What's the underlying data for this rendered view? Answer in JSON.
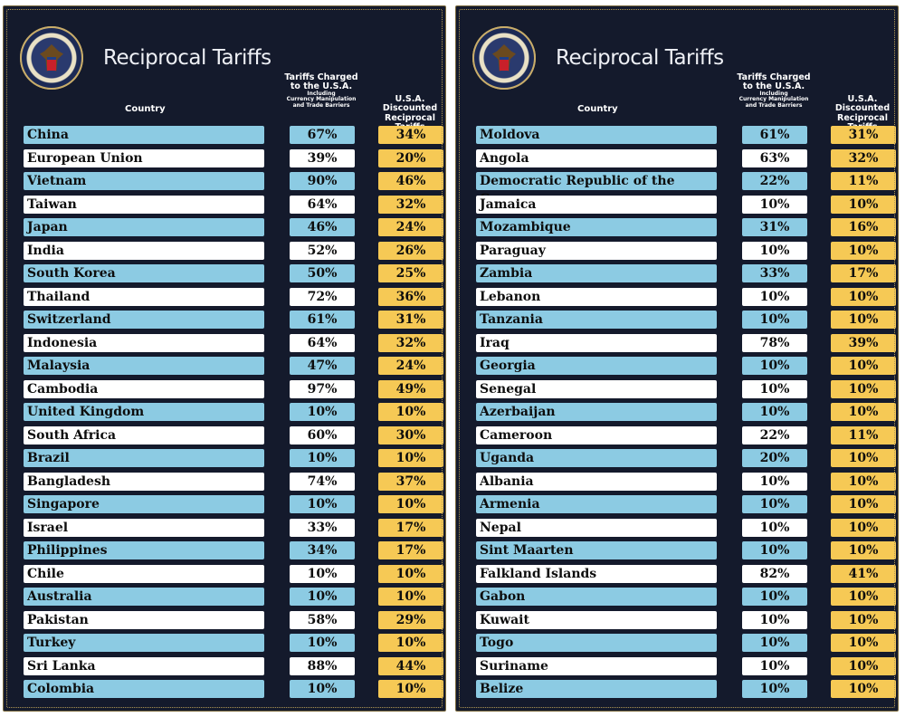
{
  "title": "Reciprocal Tariffs",
  "headers": {
    "country": "Country",
    "charged_line1": "Tariffs Charged",
    "charged_line2": "to the U.S.A.",
    "charged_sub1": "Including",
    "charged_sub2": "Currency Manipulation",
    "charged_sub3": "and Trade Barriers",
    "recip_line1": "U.S.A. Discounted",
    "recip_line2": "Reciprocal Tariffs"
  },
  "seal_text": "SEAL OF THE PRESIDENT OF THE UNITED STATES",
  "panels": [
    {
      "rows": [
        {
          "country": "China",
          "charged": "67%",
          "reciprocal": "34%"
        },
        {
          "country": "European Union",
          "charged": "39%",
          "reciprocal": "20%"
        },
        {
          "country": "Vietnam",
          "charged": "90%",
          "reciprocal": "46%"
        },
        {
          "country": "Taiwan",
          "charged": "64%",
          "reciprocal": "32%"
        },
        {
          "country": "Japan",
          "charged": "46%",
          "reciprocal": "24%"
        },
        {
          "country": "India",
          "charged": "52%",
          "reciprocal": "26%"
        },
        {
          "country": "South Korea",
          "charged": "50%",
          "reciprocal": "25%"
        },
        {
          "country": "Thailand",
          "charged": "72%",
          "reciprocal": "36%"
        },
        {
          "country": "Switzerland",
          "charged": "61%",
          "reciprocal": "31%"
        },
        {
          "country": "Indonesia",
          "charged": "64%",
          "reciprocal": "32%"
        },
        {
          "country": "Malaysia",
          "charged": "47%",
          "reciprocal": "24%"
        },
        {
          "country": "Cambodia",
          "charged": "97%",
          "reciprocal": "49%"
        },
        {
          "country": "United Kingdom",
          "charged": "10%",
          "reciprocal": "10%"
        },
        {
          "country": "South Africa",
          "charged": "60%",
          "reciprocal": "30%"
        },
        {
          "country": "Brazil",
          "charged": "10%",
          "reciprocal": "10%"
        },
        {
          "country": "Bangladesh",
          "charged": "74%",
          "reciprocal": "37%"
        },
        {
          "country": "Singapore",
          "charged": "10%",
          "reciprocal": "10%"
        },
        {
          "country": "Israel",
          "charged": "33%",
          "reciprocal": "17%"
        },
        {
          "country": "Philippines",
          "charged": "34%",
          "reciprocal": "17%"
        },
        {
          "country": "Chile",
          "charged": "10%",
          "reciprocal": "10%"
        },
        {
          "country": "Australia",
          "charged": "10%",
          "reciprocal": "10%"
        },
        {
          "country": "Pakistan",
          "charged": "58%",
          "reciprocal": "29%"
        },
        {
          "country": "Turkey",
          "charged": "10%",
          "reciprocal": "10%"
        },
        {
          "country": "Sri Lanka",
          "charged": "88%",
          "reciprocal": "44%"
        },
        {
          "country": "Colombia",
          "charged": "10%",
          "reciprocal": "10%"
        }
      ]
    },
    {
      "rows": [
        {
          "country": "Moldova",
          "charged": "61%",
          "reciprocal": "31%"
        },
        {
          "country": "Angola",
          "charged": "63%",
          "reciprocal": "32%"
        },
        {
          "country": "Democratic Republic of the Congo",
          "charged": "22%",
          "reciprocal": "11%"
        },
        {
          "country": "Jamaica",
          "charged": "10%",
          "reciprocal": "10%"
        },
        {
          "country": "Mozambique",
          "charged": "31%",
          "reciprocal": "16%"
        },
        {
          "country": "Paraguay",
          "charged": "10%",
          "reciprocal": "10%"
        },
        {
          "country": "Zambia",
          "charged": "33%",
          "reciprocal": "17%"
        },
        {
          "country": "Lebanon",
          "charged": "10%",
          "reciprocal": "10%"
        },
        {
          "country": "Tanzania",
          "charged": "10%",
          "reciprocal": "10%"
        },
        {
          "country": "Iraq",
          "charged": "78%",
          "reciprocal": "39%"
        },
        {
          "country": "Georgia",
          "charged": "10%",
          "reciprocal": "10%"
        },
        {
          "country": "Senegal",
          "charged": "10%",
          "reciprocal": "10%"
        },
        {
          "country": "Azerbaijan",
          "charged": "10%",
          "reciprocal": "10%"
        },
        {
          "country": "Cameroon",
          "charged": "22%",
          "reciprocal": "11%"
        },
        {
          "country": "Uganda",
          "charged": "20%",
          "reciprocal": "10%"
        },
        {
          "country": "Albania",
          "charged": "10%",
          "reciprocal": "10%"
        },
        {
          "country": "Armenia",
          "charged": "10%",
          "reciprocal": "10%"
        },
        {
          "country": "Nepal",
          "charged": "10%",
          "reciprocal": "10%"
        },
        {
          "country": "Sint Maarten",
          "charged": "10%",
          "reciprocal": "10%"
        },
        {
          "country": "Falkland Islands",
          "charged": "82%",
          "reciprocal": "41%"
        },
        {
          "country": "Gabon",
          "charged": "10%",
          "reciprocal": "10%"
        },
        {
          "country": "Kuwait",
          "charged": "10%",
          "reciprocal": "10%"
        },
        {
          "country": "Togo",
          "charged": "10%",
          "reciprocal": "10%"
        },
        {
          "country": "Suriname",
          "charged": "10%",
          "reciprocal": "10%"
        },
        {
          "country": "Belize",
          "charged": "10%",
          "reciprocal": "10%"
        }
      ]
    }
  ]
}
